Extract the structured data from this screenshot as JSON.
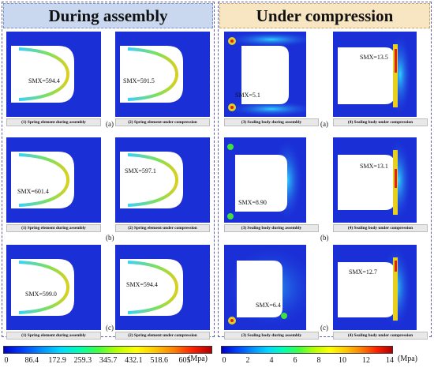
{
  "headers": {
    "left": "During assembly",
    "right": "Under compression"
  },
  "colors": {
    "blue_field": "#1a2fd6",
    "spring_low": "#3ad0ff",
    "spring_high": "#d8d020",
    "red_hot": "#e02020"
  },
  "rows": [
    {
      "letter_left": "(a)",
      "letter_right": "(a)",
      "spring_assembly": {
        "caption": "(1) Spring element during assembly",
        "smx": "SMX=594.4"
      },
      "spring_compression": {
        "caption": "(2) Spring element under compression",
        "smx": "SMX=591.5"
      },
      "seal_assembly": {
        "caption": "(3) Sealing body during assembly",
        "smx": "SMX=5.1"
      },
      "seal_compression": {
        "caption": "(4) Sealing body under compression",
        "smx": "SMX=13.5"
      }
    },
    {
      "letter_left": "(b)",
      "letter_right": "(b)",
      "spring_assembly": {
        "caption": "(1) Spring element during assembly",
        "smx": "SMX=601.4"
      },
      "spring_compression": {
        "caption": "(2) Spring element under compression",
        "smx": "SMX=597.1"
      },
      "seal_assembly": {
        "caption": "(3) Sealing body during assembly",
        "smx": "SMX=8.90"
      },
      "seal_compression": {
        "caption": "(4) Sealing body under compression",
        "smx": "SMX=13.1"
      }
    },
    {
      "letter_left": "(c)",
      "letter_right": "(c)",
      "spring_assembly": {
        "caption": "(1) Spring element during assembly",
        "smx": "SMX=599.0"
      },
      "spring_compression": {
        "caption": "(2) Spring element under compression",
        "smx": "SMX=594.4"
      },
      "seal_assembly": {
        "caption": "(3) Sealing body during assembly",
        "smx": "SMX=6.4"
      },
      "seal_compression": {
        "caption": "(4) Sealing body under compression",
        "smx": "SMX=12.7"
      }
    }
  ],
  "colorbar_left": {
    "ticks": [
      "0",
      "86.4",
      "172.9",
      "259.3",
      "345.7",
      "432.1",
      "518.6",
      "605"
    ],
    "unit": "(Mpa)"
  },
  "colorbar_right": {
    "ticks": [
      "0",
      "2",
      "4",
      "6",
      "8",
      "10",
      "12",
      "14"
    ],
    "unit": "(Mpa)"
  }
}
